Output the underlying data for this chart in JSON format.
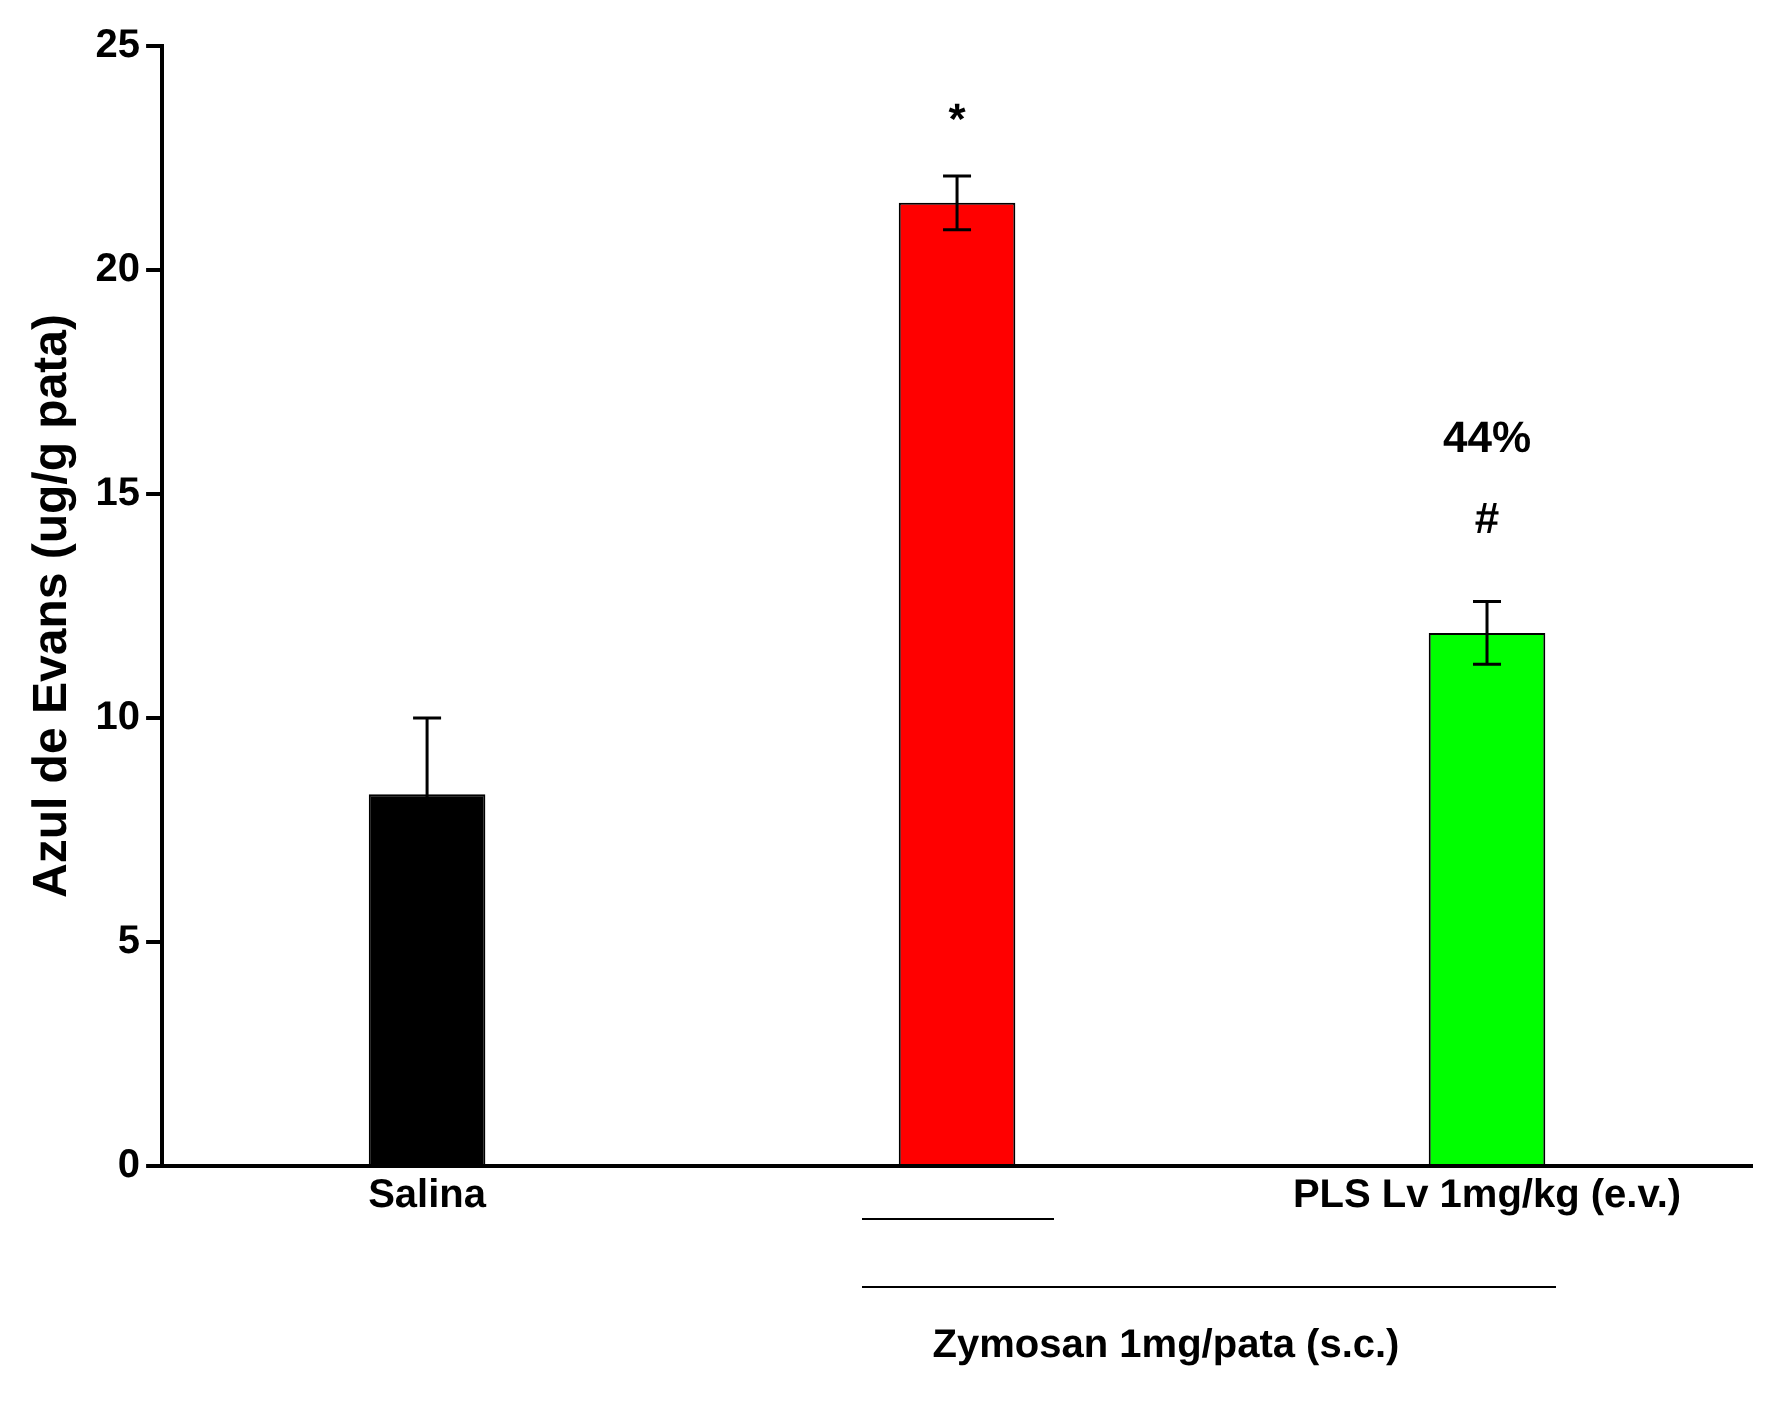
{
  "chart_data": {
    "type": "bar",
    "ylabel": "Azul de Evans (ug/g pata)",
    "categories": [
      "Salina",
      null,
      "PLS Lv 1mg/kg (e.v.)"
    ],
    "values": [
      8.3,
      21.5,
      11.9
    ],
    "colors": [
      "#000000",
      "#ff0000",
      "#00ff00"
    ],
    "errors": [
      1.7,
      0.6,
      0.7
    ],
    "ylim": [
      0,
      25
    ],
    "yticks": [
      0,
      5,
      10,
      15,
      20,
      25
    ],
    "grid": false,
    "legend": false,
    "annotations": [
      "*",
      "44%",
      "#",
      "Zymosan 1mg/pata (s.c.)"
    ]
  }
}
